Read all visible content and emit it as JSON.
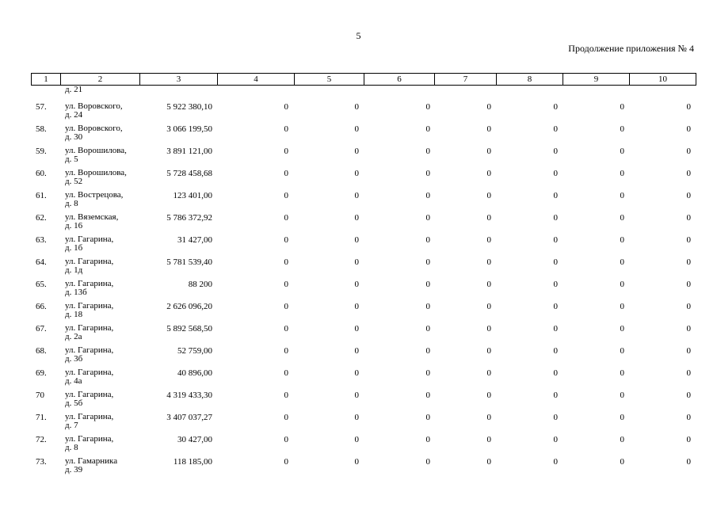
{
  "page": {
    "number": "5",
    "continuation": "Продолжение приложения № 4"
  },
  "header": [
    "1",
    "2",
    "3",
    "4",
    "5",
    "6",
    "7",
    "8",
    "9",
    "10"
  ],
  "stub": "д. 21",
  "rows": [
    {
      "num": "57.",
      "street": "ул. Воровского,",
      "house": "д. 24",
      "amount": "5 922 380,10",
      "c4": "0",
      "c5": "0",
      "c6": "0",
      "c7": "0",
      "c8": "0",
      "c9": "0",
      "c10": "0"
    },
    {
      "num": "58.",
      "street": "ул. Воровского,",
      "house": "д. 30",
      "amount": "3 066 199,50",
      "c4": "0",
      "c5": "0",
      "c6": "0",
      "c7": "0",
      "c8": "0",
      "c9": "0",
      "c10": "0"
    },
    {
      "num": "59.",
      "street": "ул. Ворошилова,",
      "house": "д. 5",
      "amount": "3 891 121,00",
      "c4": "0",
      "c5": "0",
      "c6": "0",
      "c7": "0",
      "c8": "0",
      "c9": "0",
      "c10": "0"
    },
    {
      "num": "60.",
      "street": "ул. Ворошилова,",
      "house": "д. 52",
      "amount": "5 728 458,68",
      "c4": "0",
      "c5": "0",
      "c6": "0",
      "c7": "0",
      "c8": "0",
      "c9": "0",
      "c10": "0"
    },
    {
      "num": "61.",
      "street": "ул. Вострецова,",
      "house": "д. 8",
      "amount": "123 401,00",
      "c4": "0",
      "c5": "0",
      "c6": "0",
      "c7": "0",
      "c8": "0",
      "c9": "0",
      "c10": "0"
    },
    {
      "num": "62.",
      "street": "ул. Вяземская,",
      "house": "д. 16",
      "amount": "5 786 372,92",
      "c4": "0",
      "c5": "0",
      "c6": "0",
      "c7": "0",
      "c8": "0",
      "c9": "0",
      "c10": "0"
    },
    {
      "num": "63.",
      "street": "ул. Гагарина,",
      "house": "д. 1б",
      "amount": "31 427,00",
      "c4": "0",
      "c5": "0",
      "c6": "0",
      "c7": "0",
      "c8": "0",
      "c9": "0",
      "c10": "0"
    },
    {
      "num": "64.",
      "street": "ул. Гагарина,",
      "house": "д. 1д",
      "amount": "5 781 539,40",
      "c4": "0",
      "c5": "0",
      "c6": "0",
      "c7": "0",
      "c8": "0",
      "c9": "0",
      "c10": "0"
    },
    {
      "num": "65.",
      "street": "ул. Гагарина,",
      "house": "д. 13б",
      "amount": "88 200",
      "c4": "0",
      "c5": "0",
      "c6": "0",
      "c7": "0",
      "c8": "0",
      "c9": "0",
      "c10": "0"
    },
    {
      "num": "66.",
      "street": "ул. Гагарина,",
      "house": "д. 18",
      "amount": "2 626 096,20",
      "c4": "0",
      "c5": "0",
      "c6": "0",
      "c7": "0",
      "c8": "0",
      "c9": "0",
      "c10": "0"
    },
    {
      "num": "67.",
      "street": "ул. Гагарина,",
      "house": "д. 2а",
      "amount": "5 892 568,50",
      "c4": "0",
      "c5": "0",
      "c6": "0",
      "c7": "0",
      "c8": "0",
      "c9": "0",
      "c10": "0"
    },
    {
      "num": "68.",
      "street": "ул. Гагарина,",
      "house": "д. 3б",
      "amount": "52 759,00",
      "c4": "0",
      "c5": "0",
      "c6": "0",
      "c7": "0",
      "c8": "0",
      "c9": "0",
      "c10": "0"
    },
    {
      "num": "69.",
      "street": "ул. Гагарина,",
      "house": "д. 4а",
      "amount": "40 896,00",
      "c4": "0",
      "c5": "0",
      "c6": "0",
      "c7": "0",
      "c8": "0",
      "c9": "0",
      "c10": "0"
    },
    {
      "num": "70",
      "street": "ул. Гагарина,",
      "house": "д. 5б",
      "amount": "4 319 433,30",
      "c4": "0",
      "c5": "0",
      "c6": "0",
      "c7": "0",
      "c8": "0",
      "c9": "0",
      "c10": "0"
    },
    {
      "num": "71.",
      "street": "ул. Гагарина,",
      "house": "д. 7",
      "amount": "3 407 037,27",
      "c4": "0",
      "c5": "0",
      "c6": "0",
      "c7": "0",
      "c8": "0",
      "c9": "0",
      "c10": "0"
    },
    {
      "num": "72.",
      "street": "ул. Гагарина,",
      "house": "д. 8",
      "amount": "30 427,00",
      "c4": "0",
      "c5": "0",
      "c6": "0",
      "c7": "0",
      "c8": "0",
      "c9": "0",
      "c10": "0"
    },
    {
      "num": "73.",
      "street": "ул. Гамарника",
      "house": "д. 39",
      "amount": "118 185,00",
      "c4": "0",
      "c5": "0",
      "c6": "0",
      "c7": "0",
      "c8": "0",
      "c9": "0",
      "c10": "0"
    }
  ]
}
